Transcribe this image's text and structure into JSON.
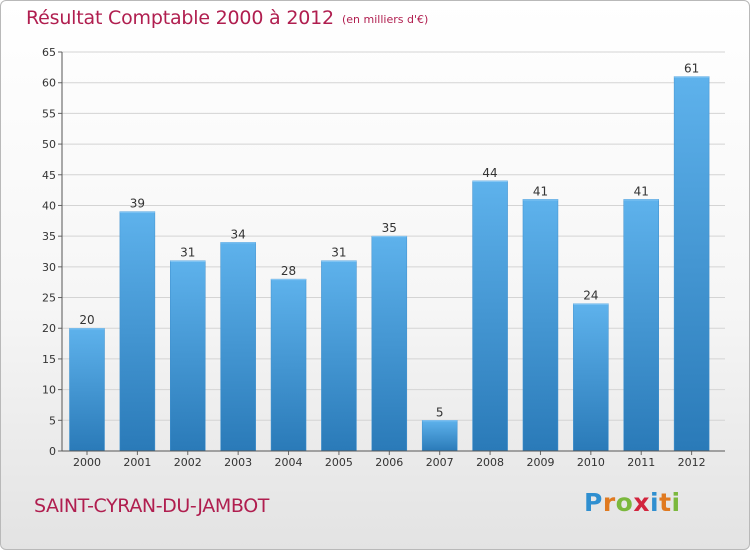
{
  "page": {
    "title": "Résultat Comptable 2000 à 2012",
    "subtitle": "(en milliers d'€)",
    "commune": "SAINT-CYRAN-DU-JAMBOT",
    "logo_text": "Proxiti"
  },
  "colors": {
    "accent": "#b01e4f",
    "bar_top": "#5eb2ec",
    "bar_bottom": "#2a7ab8",
    "grid": "#d4d4d4",
    "axis_text": "#333333",
    "logo": [
      "#2f8fd0",
      "#e07a20",
      "#7bb83d",
      "#d2243d",
      "#2f8fd0",
      "#e07a20",
      "#7bb83d"
    ]
  },
  "chart_data": {
    "type": "bar",
    "title": "Résultat Comptable 2000 à 2012",
    "subtitle": "(en milliers d'€)",
    "categories": [
      "2000",
      "2001",
      "2002",
      "2003",
      "2004",
      "2005",
      "2006",
      "2007",
      "2008",
      "2009",
      "2010",
      "2011",
      "2012"
    ],
    "values": [
      20,
      39,
      31,
      34,
      28,
      31,
      35,
      5,
      44,
      41,
      24,
      41,
      61
    ],
    "ylim": [
      0,
      65
    ],
    "yticks": [
      0,
      5,
      10,
      15,
      20,
      25,
      30,
      35,
      40,
      45,
      50,
      55,
      60,
      65
    ],
    "grid": true,
    "data_labels": true
  }
}
